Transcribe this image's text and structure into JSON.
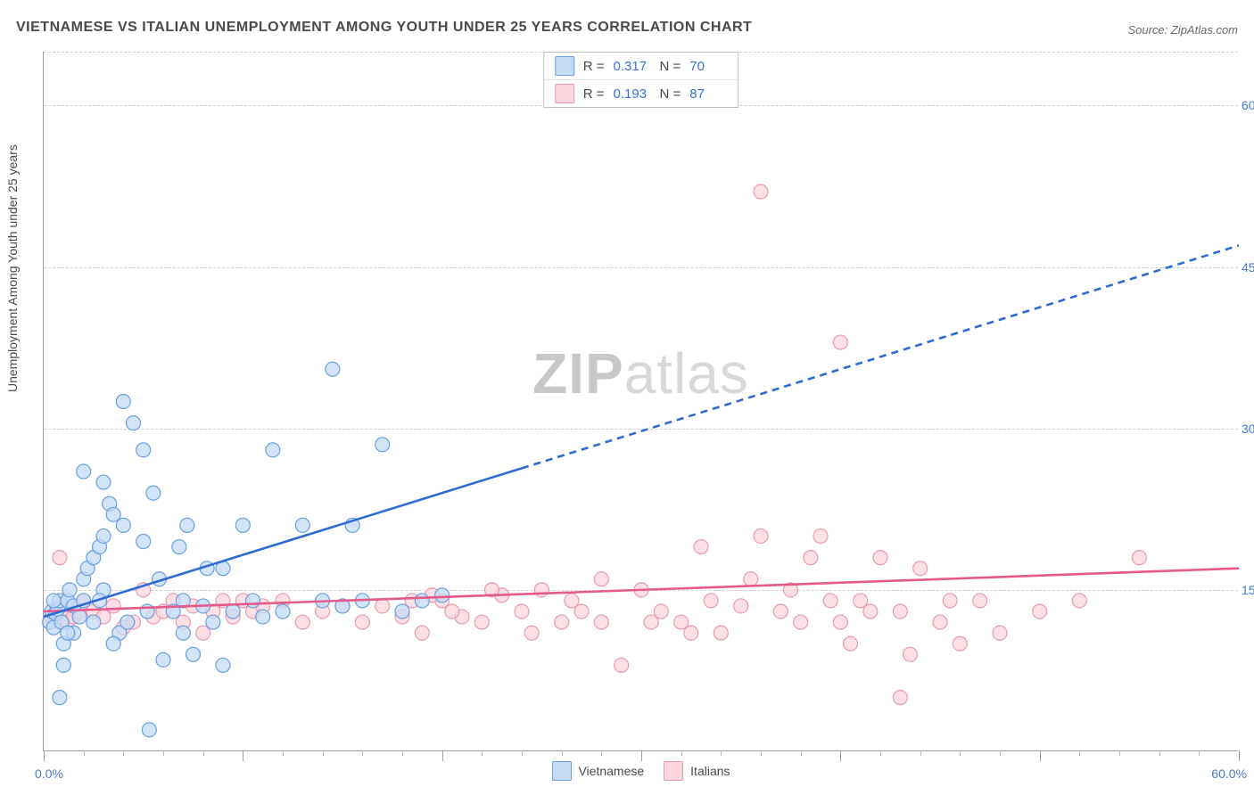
{
  "title": "VIETNAMESE VS ITALIAN UNEMPLOYMENT AMONG YOUTH UNDER 25 YEARS CORRELATION CHART",
  "source_label": "Source: ZipAtlas.com",
  "ylabel": "Unemployment Among Youth under 25 years",
  "watermark": {
    "bold": "ZIP",
    "light": "atlas"
  },
  "chart": {
    "type": "scatter",
    "background_color": "#ffffff",
    "grid_color": "#d0d0d0",
    "axis_color": "#9a9a9a",
    "xlim": [
      0,
      60
    ],
    "ylim": [
      0,
      65
    ],
    "y_ticks": [
      {
        "v": 15,
        "label": "15.0%"
      },
      {
        "v": 30,
        "label": "30.0%"
      },
      {
        "v": 45,
        "label": "45.0%"
      },
      {
        "v": 60,
        "label": "60.0%"
      }
    ],
    "x_major_ticks": [
      0,
      10,
      20,
      30,
      40,
      50,
      60
    ],
    "x_minor_ticks": [
      2,
      4,
      6,
      8,
      12,
      14,
      16,
      18,
      22,
      24,
      26,
      28,
      32,
      34,
      36,
      38,
      42,
      44,
      46,
      48,
      52,
      54,
      56,
      58
    ],
    "x_min_label": "0.0%",
    "x_max_label": "60.0%",
    "marker_radius": 8,
    "marker_stroke_width": 1.2,
    "line_width": 2.6,
    "series": [
      {
        "key": "vietnamese",
        "label": "Vietnamese",
        "fill": "#c5dbf5",
        "stroke": "#6a9fe0",
        "line_color": "#2f6bd0",
        "r": "0.317",
        "n": "70",
        "trend": {
          "x1": 0,
          "y1": 12.5,
          "x2": 60,
          "y2": 47,
          "solid_until_x": 24
        },
        "points": [
          [
            0.3,
            12
          ],
          [
            0.4,
            13
          ],
          [
            0.5,
            11.5
          ],
          [
            0.6,
            12.8
          ],
          [
            0.7,
            13.2
          ],
          [
            0.8,
            14
          ],
          [
            0.9,
            12
          ],
          [
            1.0,
            10
          ],
          [
            1.0,
            8
          ],
          [
            0.8,
            5
          ],
          [
            1.2,
            14
          ],
          [
            1.3,
            15
          ],
          [
            1.5,
            11
          ],
          [
            1.5,
            13.5
          ],
          [
            1.8,
            12.5
          ],
          [
            2.0,
            14
          ],
          [
            2.0,
            16
          ],
          [
            2.2,
            17
          ],
          [
            2.5,
            18
          ],
          [
            2.5,
            12
          ],
          [
            2.8,
            19
          ],
          [
            3.0,
            15
          ],
          [
            3.0,
            20
          ],
          [
            3.0,
            25
          ],
          [
            3.3,
            23
          ],
          [
            3.5,
            22
          ],
          [
            3.8,
            11
          ],
          [
            4.0,
            21
          ],
          [
            4.2,
            12
          ],
          [
            4.5,
            30.5
          ],
          [
            5.0,
            19.5
          ],
          [
            5.0,
            28
          ],
          [
            5.2,
            13
          ],
          [
            5.3,
            2
          ],
          [
            5.5,
            24
          ],
          [
            5.8,
            16
          ],
          [
            6.0,
            8.5
          ],
          [
            6.5,
            13
          ],
          [
            6.8,
            19
          ],
          [
            7.0,
            14
          ],
          [
            7.0,
            11
          ],
          [
            7.2,
            21
          ],
          [
            7.5,
            9
          ],
          [
            8.0,
            13.5
          ],
          [
            8.2,
            17
          ],
          [
            8.5,
            12
          ],
          [
            9.0,
            8
          ],
          [
            9.5,
            13
          ],
          [
            10.0,
            21
          ],
          [
            10.5,
            14
          ],
          [
            11.0,
            12.5
          ],
          [
            11.5,
            28
          ],
          [
            12.0,
            13
          ],
          [
            13.0,
            21
          ],
          [
            14.0,
            14
          ],
          [
            14.5,
            35.5
          ],
          [
            15.0,
            13.5
          ],
          [
            15.5,
            21
          ],
          [
            16.0,
            14
          ],
          [
            17.0,
            28.5
          ],
          [
            18.0,
            13
          ],
          [
            19.0,
            14
          ],
          [
            20.0,
            14.5
          ],
          [
            0.5,
            14
          ],
          [
            1.2,
            11
          ],
          [
            2.0,
            26
          ],
          [
            9.0,
            17
          ],
          [
            4.0,
            32.5
          ],
          [
            2.8,
            14
          ],
          [
            3.5,
            10
          ]
        ]
      },
      {
        "key": "italians",
        "label": "Italians",
        "fill": "#fcd5de",
        "stroke": "#e99ab0",
        "line_color": "#e45a8a",
        "r": "0.193",
        "n": "87",
        "trend": {
          "x1": 0,
          "y1": 13,
          "x2": 60,
          "y2": 17
        },
        "points": [
          [
            0.4,
            12.5
          ],
          [
            0.6,
            13
          ],
          [
            0.8,
            18
          ],
          [
            1.0,
            13
          ],
          [
            1.2,
            12
          ],
          [
            1.5,
            12.5
          ],
          [
            1.8,
            13
          ],
          [
            2.0,
            14
          ],
          [
            2.5,
            13
          ],
          [
            3.0,
            12.5
          ],
          [
            3.5,
            13.5
          ],
          [
            4.0,
            11.5
          ],
          [
            4.5,
            12
          ],
          [
            5.0,
            15
          ],
          [
            5.5,
            12.5
          ],
          [
            6.0,
            13
          ],
          [
            6.5,
            14
          ],
          [
            7.0,
            12
          ],
          [
            7.5,
            13.5
          ],
          [
            8.0,
            11
          ],
          [
            8.5,
            13
          ],
          [
            9.0,
            14
          ],
          [
            9.5,
            12.5
          ],
          [
            10.0,
            14
          ],
          [
            10.5,
            13
          ],
          [
            11.0,
            13.5
          ],
          [
            12.0,
            14
          ],
          [
            13.0,
            12
          ],
          [
            14.0,
            13
          ],
          [
            15.0,
            13.5
          ],
          [
            16.0,
            12
          ],
          [
            17.0,
            13.5
          ],
          [
            18.0,
            12.5
          ],
          [
            18.5,
            14
          ],
          [
            19.0,
            11
          ],
          [
            20.0,
            14
          ],
          [
            21.0,
            12.5
          ],
          [
            22.0,
            12
          ],
          [
            23.0,
            14.5
          ],
          [
            24.0,
            13
          ],
          [
            25.0,
            15
          ],
          [
            26.0,
            12
          ],
          [
            27.0,
            13
          ],
          [
            28.0,
            12
          ],
          [
            29.0,
            8
          ],
          [
            30.0,
            15
          ],
          [
            31.0,
            13
          ],
          [
            32.0,
            12
          ],
          [
            33.0,
            19
          ],
          [
            33.5,
            14
          ],
          [
            34.0,
            11
          ],
          [
            35.0,
            13.5
          ],
          [
            36.0,
            52
          ],
          [
            36.0,
            20
          ],
          [
            37.0,
            13
          ],
          [
            38.0,
            12
          ],
          [
            38.5,
            18
          ],
          [
            39.0,
            20
          ],
          [
            39.5,
            14
          ],
          [
            40.0,
            38
          ],
          [
            40.0,
            12
          ],
          [
            40.5,
            10
          ],
          [
            41.0,
            14
          ],
          [
            42.0,
            18
          ],
          [
            43.0,
            13
          ],
          [
            43.5,
            9
          ],
          [
            44.0,
            17
          ],
          [
            45.0,
            12
          ],
          [
            45.5,
            14
          ],
          [
            46.0,
            10
          ],
          [
            47.0,
            14
          ],
          [
            50.0,
            13
          ],
          [
            52.0,
            14
          ],
          [
            55.0,
            18
          ],
          [
            43.0,
            5
          ],
          [
            28.0,
            16
          ],
          [
            22.5,
            15
          ],
          [
            20.5,
            13
          ],
          [
            19.5,
            14.5
          ],
          [
            32.5,
            11
          ],
          [
            35.5,
            16
          ],
          [
            30.5,
            12
          ],
          [
            26.5,
            14
          ],
          [
            24.5,
            11
          ],
          [
            37.5,
            15
          ],
          [
            41.5,
            13
          ],
          [
            48.0,
            11
          ]
        ]
      }
    ]
  }
}
